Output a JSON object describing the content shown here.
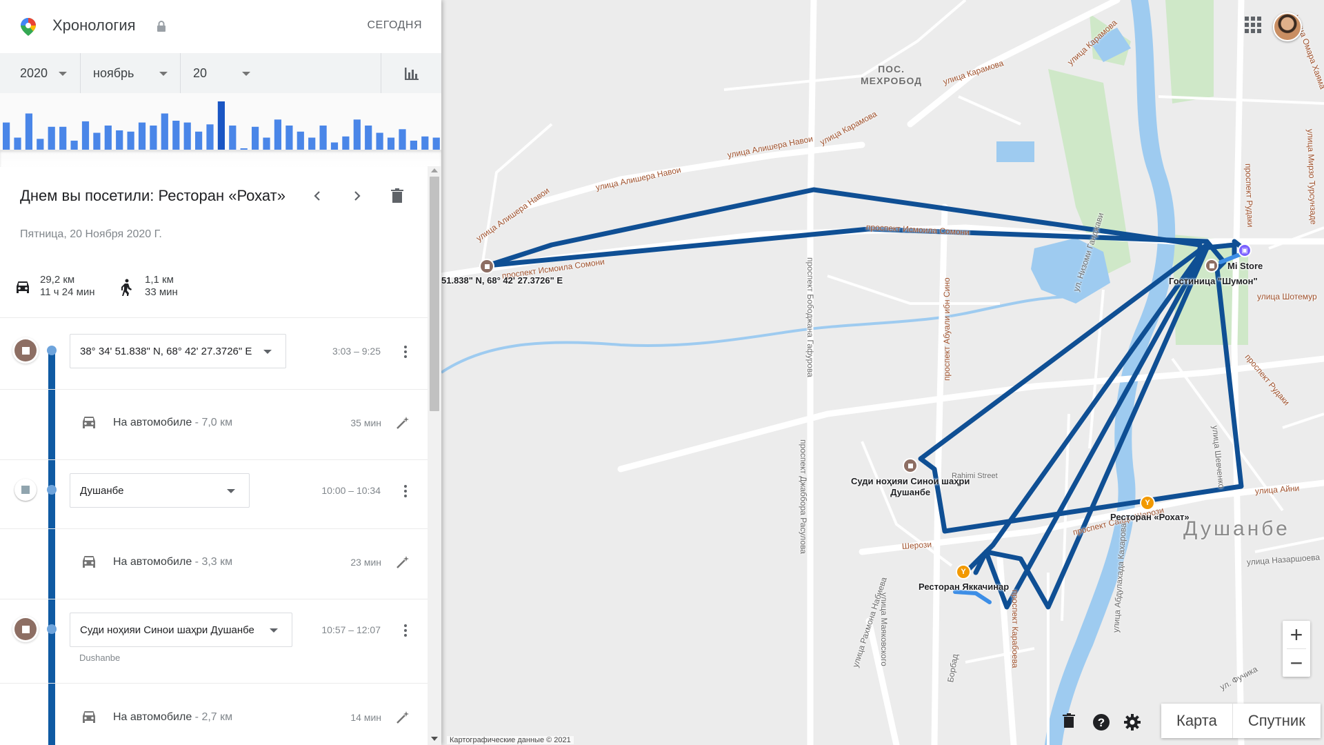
{
  "header": {
    "title": "Хронология",
    "today_label": "СЕГОДНЯ",
    "logo_icon": "google-maps-pin-icon",
    "lock_icon": "lock-icon"
  },
  "date_selector": {
    "year": "2020",
    "month": "ноябрь",
    "day": "20",
    "chart_icon": "bar-chart-icon"
  },
  "activity_histogram": {
    "bar_heights": [
      45,
      20,
      60,
      18,
      38,
      38,
      15,
      47,
      28,
      40,
      32,
      30,
      45,
      40,
      60,
      48,
      45,
      30,
      42,
      80,
      40,
      2,
      38,
      20,
      50,
      40,
      30,
      20,
      40,
      12,
      22,
      50,
      40,
      28,
      20,
      34,
      15,
      22,
      20
    ]
  },
  "summary": {
    "title": "Днем вы посетили: Ресторан «Рохат»",
    "date": "Пятница, 20 Ноября 2020 Г.",
    "car_distance": "29,2 км",
    "car_duration": "11 ч 24 мин",
    "walk_distance": "1,1 км",
    "walk_duration": "33 мин"
  },
  "timeline": {
    "places": [
      {
        "name": "38° 34' 51.838\" N, 68° 42' 27.3726\" E",
        "time": "3:03 – 9:25"
      },
      {
        "name": "Душанбе",
        "time": "10:00 – 10:34"
      },
      {
        "name": "Суди ноҳияи Синои шаҳри Душанбе",
        "time": "10:57 – 12:07",
        "address": "Dushanbe"
      }
    ],
    "segments": [
      {
        "mode": "На автомобиле",
        "distance": " - 7,0 км",
        "duration": "35 мин"
      },
      {
        "mode": "На автомобиле",
        "distance": " - 3,3 км",
        "duration": "23 мин"
      },
      {
        "mode": "На автомобиле",
        "distance": " - 2,7 км",
        "duration": "14 мин"
      }
    ]
  },
  "map": {
    "labels": {
      "coord_point": "51.838\" N, 68° 42' 27.3726\" E",
      "mi_store": "Mi Store",
      "hotel": "Гостиница \"Шумон\"",
      "court_line1": "Суди ноҳияи Синои шаҳри",
      "court_line2": "Душанбе",
      "rohat": "Ресторан «Рохат»",
      "yakkachinar": "Ресторан Яккачинар",
      "district_line1": "ПОС.",
      "district_line2": "МЕХРОБОД",
      "city": "Душанбе",
      "rahimi": "Rahimi Street"
    },
    "streets": {
      "karamova1": "улица Карамова",
      "karamova2": "улица Карамова",
      "karamova3": "улица Карамова",
      "navoi1": "улица Алишера Навои",
      "navoi2": "улица Алишера Навои",
      "navoi3": "улица Алишера Навои",
      "somoni1": "проспект Исмоила Сомони",
      "somoni2": "проспект Исмоила Сомони",
      "gafurova": "проспект Бободжана Гафурова",
      "rasulova": "проспект Джаббора Расулова",
      "sino": "проспект Абуали ибн Сино",
      "rudaki1": "проспект Рудаки",
      "rudaki2": "проспект Рудаки",
      "shotemur": "улица Шотемур",
      "aini": "улица Айни",
      "sherozi": "проспект Саади Шерози",
      "sherozi2": "Шерози",
      "nazarshoeva": "улица Назаршоева",
      "karabaeva": "проспект Карабоева",
      "mayakovskogo": "улица Маяковского",
      "nabieva": "улица Рахмона Набиева",
      "kaharova": "улица Абдулахада Кахарова",
      "tursunzade": "улица Мирзо Турсунзаде",
      "khayama": "улица Омара Хаяма",
      "shevchenko": "улица Шевченко",
      "genjavi": "ул. Низоми Ганджави",
      "fuchika": "ул. Фучика",
      "borbad": "Борбад"
    },
    "zoom_in": "+",
    "zoom_out": "−",
    "map_type_map": "Карта",
    "map_type_satellite": "Спутник",
    "copyright": "Картографические данные © 2021",
    "route_color": "#0f4f94",
    "walk_color": "#3d8ee6"
  }
}
